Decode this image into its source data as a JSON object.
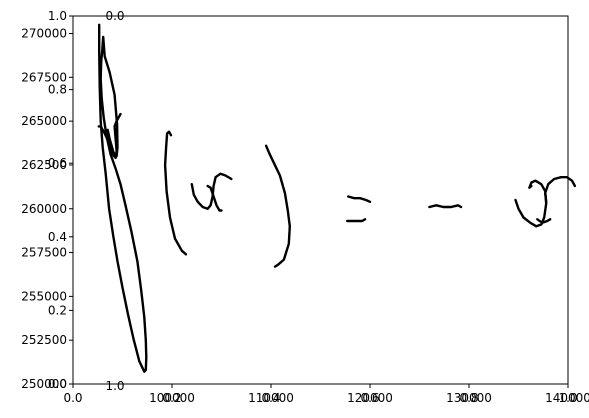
{
  "chart_data": {
    "type": "line",
    "grid": false,
    "xlim": [
      90000,
      140000
    ],
    "ylim": [
      250000,
      271000
    ],
    "x_tick_labels": [
      "100000",
      "110000",
      "120000",
      "130000",
      "140000"
    ],
    "x_tick_values": [
      100000,
      110000,
      120000,
      130000,
      140000
    ],
    "y_tick_labels": [
      "250000",
      "252500",
      "255000",
      "257500",
      "260000",
      "262500",
      "265000",
      "267500",
      "270000"
    ],
    "y_tick_values": [
      250000,
      252500,
      255000,
      257500,
      260000,
      262500,
      265000,
      267500,
      270000
    ],
    "overlay_axes": {
      "x_tick_labels": [
        "0.0",
        "0.2",
        "0.4",
        "0.6",
        "0.8",
        "1.0"
      ],
      "x_tick_values": [
        0.0,
        0.2,
        0.4,
        0.6,
        0.8,
        1.0
      ],
      "y_tick_labels": [
        "0.0",
        "0.2",
        "0.4",
        "0.6",
        "0.8",
        "1.0"
      ],
      "y_tick_values": [
        0.0,
        0.2,
        0.4,
        0.6,
        0.8,
        1.0
      ],
      "stray_labels": [
        "0.0",
        "1.0"
      ]
    },
    "series": [
      {
        "values": [
          [
            92650,
            270500
          ],
          [
            92650,
            269000
          ],
          [
            92700,
            267000
          ],
          [
            92800,
            265000
          ],
          [
            93000,
            263500
          ],
          [
            93300,
            262000
          ],
          [
            93650,
            260000
          ],
          [
            94050,
            258500
          ],
          [
            94500,
            257000
          ],
          [
            95000,
            255500
          ],
          [
            95550,
            254000
          ],
          [
            96100,
            252600
          ],
          [
            96700,
            251300
          ],
          [
            97200,
            250700
          ],
          [
            97350,
            250800
          ],
          [
            97400,
            251500
          ],
          [
            97350,
            252500
          ],
          [
            97200,
            253800
          ],
          [
            96900,
            255300
          ],
          [
            96500,
            257000
          ],
          [
            95900,
            258700
          ],
          [
            95300,
            260200
          ],
          [
            94800,
            261400
          ],
          [
            94300,
            262300
          ],
          [
            93800,
            263100
          ],
          [
            93400,
            264100
          ],
          [
            93100,
            265200
          ],
          [
            92900,
            266300
          ],
          [
            92800,
            267400
          ],
          [
            92850,
            268400
          ],
          [
            92950,
            269000
          ],
          [
            93050,
            269800
          ],
          [
            93200,
            268700
          ],
          [
            93700,
            267800
          ],
          [
            94200,
            266500
          ],
          [
            94450,
            264800
          ],
          [
            94500,
            263500
          ],
          [
            94400,
            263000
          ],
          [
            94100,
            263200
          ],
          [
            93700,
            264000
          ],
          [
            93500,
            264500
          ]
        ]
      },
      {
        "values": [
          [
            92600,
            264700
          ],
          [
            92800,
            264700
          ],
          [
            93200,
            264300
          ],
          [
            93600,
            263800
          ],
          [
            94000,
            263100
          ],
          [
            94300,
            262900
          ],
          [
            94400,
            263300
          ],
          [
            94300,
            264000
          ],
          [
            94200,
            264700
          ],
          [
            94400,
            265000
          ],
          [
            94800,
            265400
          ]
        ]
      },
      {
        "values": [
          [
            99900,
            264200
          ],
          [
            99700,
            264400
          ],
          [
            99500,
            264300
          ],
          [
            99400,
            263500
          ],
          [
            99300,
            262500
          ],
          [
            99450,
            261000
          ],
          [
            99800,
            259500
          ],
          [
            100300,
            258300
          ],
          [
            101000,
            257600
          ],
          [
            101400,
            257400
          ]
        ]
      },
      {
        "values": [
          [
            102000,
            261400
          ],
          [
            102200,
            260800
          ],
          [
            102600,
            260400
          ],
          [
            103100,
            260100
          ],
          [
            103600,
            260000
          ],
          [
            103900,
            260200
          ],
          [
            104100,
            260700
          ],
          [
            104200,
            261300
          ],
          [
            104400,
            261800
          ],
          [
            104900,
            262000
          ],
          [
            105400,
            261900
          ],
          [
            106000,
            261700
          ]
        ]
      },
      {
        "values": [
          [
            103600,
            261300
          ],
          [
            103900,
            261200
          ],
          [
            104200,
            260700
          ],
          [
            104500,
            260200
          ],
          [
            104800,
            259900
          ],
          [
            105000,
            259900
          ]
        ]
      },
      {
        "values": [
          [
            109500,
            263600
          ],
          [
            109800,
            263200
          ],
          [
            110300,
            262600
          ],
          [
            110900,
            261900
          ],
          [
            111400,
            260900
          ],
          [
            111700,
            259900
          ],
          [
            111900,
            259000
          ],
          [
            111800,
            258000
          ],
          [
            111300,
            257100
          ],
          [
            110700,
            256800
          ],
          [
            110400,
            256700
          ]
        ]
      },
      {
        "values": [
          [
            117800,
            260700
          ],
          [
            118400,
            260600
          ],
          [
            119000,
            260600
          ],
          [
            119600,
            260500
          ],
          [
            120000,
            260400
          ]
        ]
      },
      {
        "values": [
          [
            117700,
            259300
          ],
          [
            118600,
            259300
          ],
          [
            119200,
            259300
          ],
          [
            119500,
            259400
          ]
        ]
      },
      {
        "values": [
          [
            126000,
            260100
          ],
          [
            126700,
            260200
          ],
          [
            127400,
            260100
          ],
          [
            128200,
            260100
          ],
          [
            128900,
            260200
          ],
          [
            129200,
            260100
          ]
        ]
      },
      {
        "values": [
          [
            134700,
            260500
          ],
          [
            135000,
            260000
          ],
          [
            135500,
            259500
          ],
          [
            136200,
            259200
          ],
          [
            136800,
            259000
          ],
          [
            137300,
            259100
          ],
          [
            137600,
            259500
          ],
          [
            137800,
            260300
          ],
          [
            137700,
            261000
          ],
          [
            137300,
            261400
          ],
          [
            136700,
            261600
          ],
          [
            136300,
            261500
          ],
          [
            136100,
            261200
          ],
          [
            136300,
            261300
          ]
        ]
      },
      {
        "values": [
          [
            136900,
            259400
          ],
          [
            137400,
            259200
          ],
          [
            137900,
            259300
          ],
          [
            138200,
            259400
          ]
        ]
      },
      {
        "values": [
          [
            137800,
            260400
          ],
          [
            137700,
            260900
          ],
          [
            138000,
            261400
          ],
          [
            138600,
            261700
          ],
          [
            139300,
            261800
          ],
          [
            139900,
            261800
          ],
          [
            140400,
            261600
          ],
          [
            140700,
            261300
          ]
        ]
      }
    ]
  }
}
